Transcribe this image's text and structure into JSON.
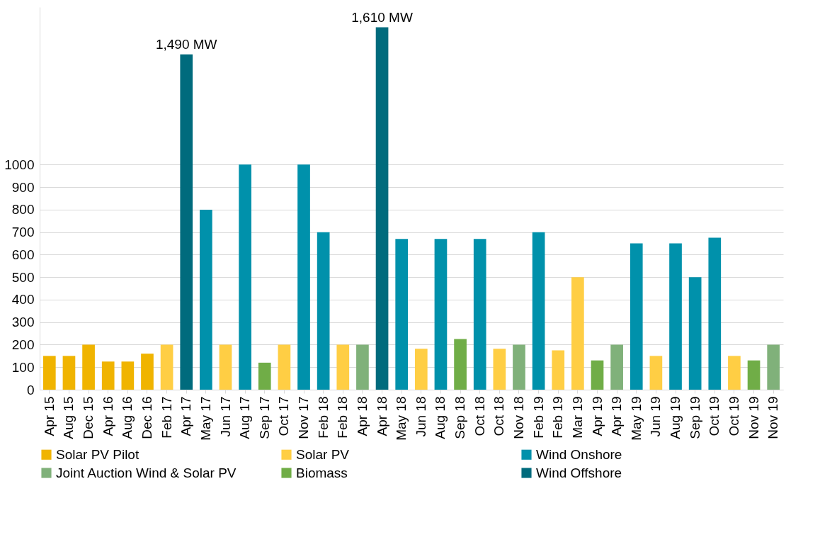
{
  "chart_data": {
    "type": "bar",
    "categories": [
      "Apr 15",
      "Aug 15",
      "Dec 15",
      "Apr 16",
      "Aug 16",
      "Dec 16",
      "Feb 17",
      "Apr 17",
      "May 17",
      "Jun 17",
      "Aug 17",
      "Sep 17",
      "Oct 17",
      "Nov 17",
      "Feb 18",
      "Feb 18",
      "Apr 18",
      "Apr 18",
      "May 18",
      "Jun 18",
      "Aug 18",
      "Sep 18",
      "Oct 18",
      "Oct 18",
      "Nov 18",
      "Feb 19",
      "Feb 19",
      "Mar 19",
      "Apr 19",
      "Apr 19",
      "May 19",
      "Jun 19",
      "Aug 19",
      "Sep 19",
      "Oct 19",
      "Oct 19",
      "Nov 19",
      "Nov 19"
    ],
    "series": [
      {
        "name": "Solar PV Pilot",
        "color": "#f0b400",
        "values": [
          150,
          150,
          200,
          125,
          125,
          160,
          null,
          null,
          null,
          null,
          null,
          null,
          null,
          null,
          null,
          null,
          null,
          null,
          null,
          null,
          null,
          null,
          null,
          null,
          null,
          null,
          null,
          null,
          null,
          null,
          null,
          null,
          null,
          null,
          null,
          null,
          null,
          null
        ]
      },
      {
        "name": "Solar PV",
        "color": "#ffce44",
        "values": [
          null,
          null,
          null,
          null,
          null,
          null,
          200,
          null,
          null,
          200,
          null,
          null,
          200,
          null,
          null,
          200,
          null,
          null,
          null,
          182,
          null,
          null,
          null,
          182,
          null,
          null,
          175,
          500,
          null,
          null,
          null,
          150,
          null,
          null,
          null,
          150,
          null,
          null
        ]
      },
      {
        "name": "Wind Onshore",
        "color": "#0091ab",
        "values": [
          null,
          null,
          null,
          null,
          null,
          null,
          null,
          null,
          800,
          null,
          1000,
          null,
          null,
          1000,
          700,
          null,
          null,
          null,
          670,
          null,
          670,
          null,
          670,
          null,
          null,
          700,
          null,
          null,
          null,
          null,
          650,
          null,
          650,
          500,
          675,
          null,
          null,
          null
        ]
      },
      {
        "name": "Joint Auction Wind & Solar PV",
        "color": "#80b17a",
        "values": [
          null,
          null,
          null,
          null,
          null,
          null,
          null,
          null,
          null,
          null,
          null,
          null,
          null,
          null,
          null,
          null,
          200,
          null,
          null,
          null,
          null,
          null,
          null,
          null,
          200,
          null,
          null,
          null,
          null,
          200,
          null,
          null,
          null,
          null,
          null,
          null,
          null,
          200
        ]
      },
      {
        "name": "Biomass",
        "color": "#70ad47",
        "values": [
          null,
          null,
          null,
          null,
          null,
          null,
          null,
          null,
          null,
          null,
          null,
          120,
          null,
          null,
          null,
          null,
          null,
          null,
          null,
          null,
          null,
          225,
          null,
          null,
          null,
          null,
          null,
          null,
          130,
          null,
          null,
          null,
          null,
          null,
          null,
          null,
          130,
          null
        ]
      },
      {
        "name": "Wind Offshore",
        "color": "#006b7d",
        "values": [
          null,
          null,
          null,
          null,
          null,
          null,
          null,
          1490,
          null,
          null,
          null,
          null,
          null,
          null,
          null,
          null,
          null,
          1610,
          null,
          null,
          null,
          null,
          null,
          null,
          null,
          null,
          null,
          null,
          null,
          null,
          null,
          null,
          null,
          null,
          null,
          null,
          null,
          null
        ],
        "value_labels": [
          null,
          null,
          null,
          null,
          null,
          null,
          null,
          "1,490 MW",
          null,
          null,
          null,
          null,
          null,
          null,
          null,
          null,
          null,
          "1,610 MW",
          null,
          null,
          null,
          null,
          null,
          null,
          null,
          null,
          null,
          null,
          null,
          null,
          null,
          null,
          null,
          null,
          null,
          null,
          null,
          null
        ]
      }
    ],
    "ylim": [
      0,
      1700
    ],
    "yticks": [
      0,
      100,
      200,
      300,
      400,
      500,
      600,
      700,
      800,
      900,
      1000
    ],
    "grid": "y",
    "legend": "bottom"
  }
}
